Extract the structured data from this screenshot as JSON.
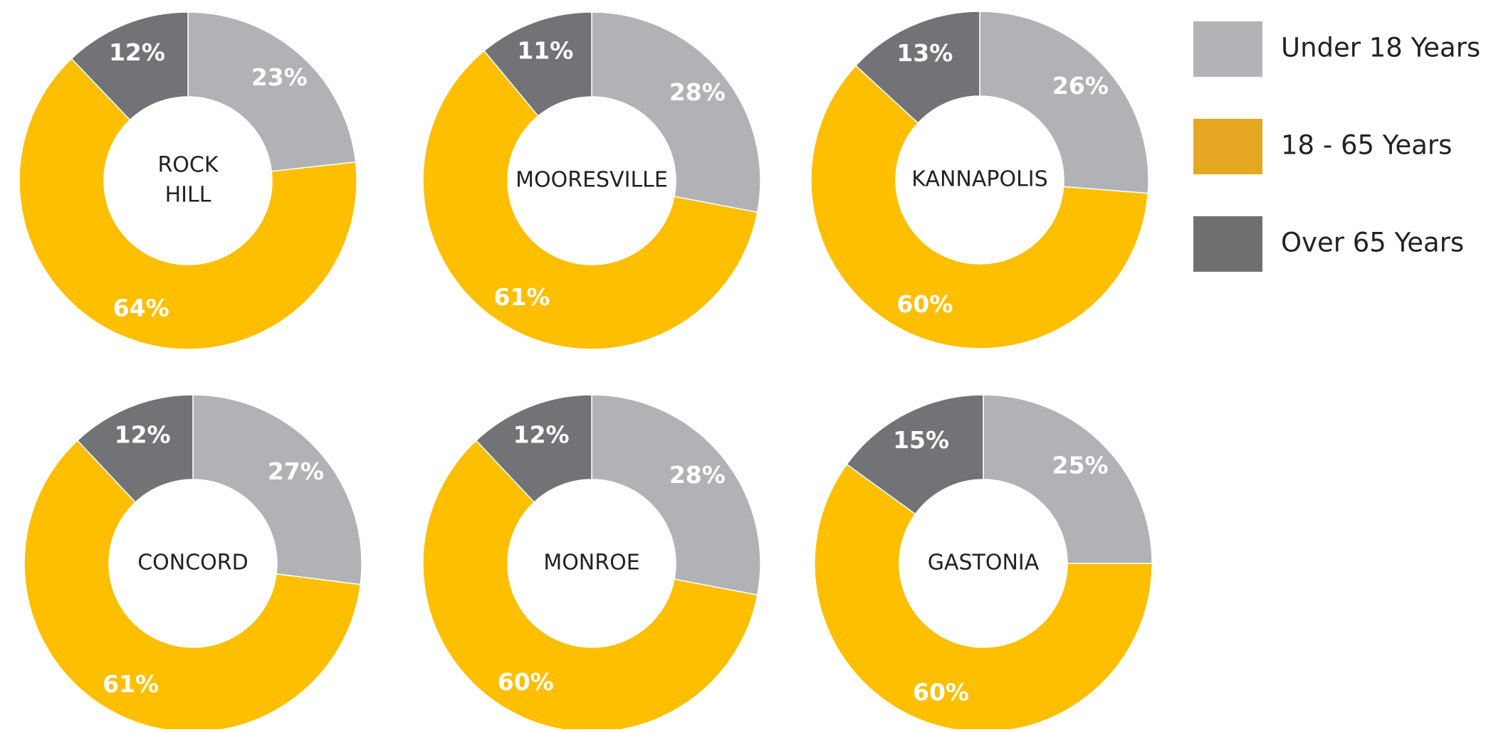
{
  "legend": {
    "items": [
      {
        "label": "Under 18 Years",
        "color": "#b4b4b8"
      },
      {
        "label": "18 - 65 Years",
        "color": "#e6a822"
      },
      {
        "label": "Over 65 Years",
        "color": "#707073"
      }
    ]
  },
  "chart_data": [
    {
      "type": "donut",
      "title": [
        "ROCK",
        "HILL"
      ],
      "values": [
        23,
        64,
        12
      ],
      "value_labels": [
        "23%",
        "64%",
        "12%"
      ],
      "colors": [
        "#b1b2b6",
        "#fdbf00",
        "#727376"
      ]
    },
    {
      "type": "donut",
      "title": [
        "MOORESVILLE"
      ],
      "values": [
        28,
        61,
        11
      ],
      "value_labels": [
        "28%",
        "61%",
        "11%"
      ],
      "colors": [
        "#b1b2b6",
        "#fdbf00",
        "#727376"
      ]
    },
    {
      "type": "donut",
      "title": [
        "KANNAPOLIS"
      ],
      "values": [
        26,
        60,
        13
      ],
      "value_labels": [
        "26%",
        "60%",
        "13%"
      ],
      "colors": [
        "#b1b2b6",
        "#fdbf00",
        "#727376"
      ]
    },
    {
      "type": "donut",
      "title": [
        "CONCORD"
      ],
      "values": [
        27,
        61,
        12
      ],
      "value_labels": [
        "27%",
        "61%",
        "12%"
      ],
      "colors": [
        "#b1b2b6",
        "#fdbf00",
        "#727376"
      ]
    },
    {
      "type": "donut",
      "title": [
        "MONROE"
      ],
      "values": [
        28,
        60,
        12
      ],
      "value_labels": [
        "28%",
        "60%",
        "12%"
      ],
      "colors": [
        "#b1b2b6",
        "#fdbf00",
        "#727376"
      ]
    },
    {
      "type": "donut",
      "title": [
        "GASTONIA"
      ],
      "values": [
        25,
        60,
        15
      ],
      "value_labels": [
        "25%",
        "60%",
        "15%"
      ],
      "colors": [
        "#b1b2b6",
        "#fdbf00",
        "#727376"
      ]
    }
  ]
}
